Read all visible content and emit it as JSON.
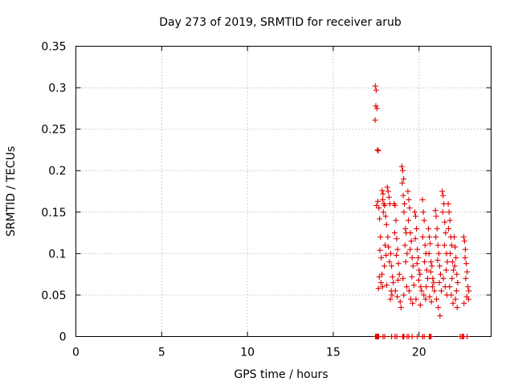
{
  "chart_data": {
    "type": "scatter",
    "title": "Day 273 of 2019, SRMTID for receiver arub",
    "xlabel": "GPS time / hours",
    "ylabel": "SRMTID / TECUs",
    "xlim": [
      0,
      24.2
    ],
    "ylim": [
      0,
      0.35
    ],
    "xticks": [
      0,
      5,
      10,
      15,
      20
    ],
    "xtick_labels": [
      "0",
      "5",
      "10",
      "15",
      "20"
    ],
    "yticks": [
      0,
      0.05,
      0.1,
      0.15,
      0.2,
      0.25,
      0.3,
      0.35
    ],
    "ytick_labels": [
      "0",
      "0.05",
      "0.1",
      "0.15",
      "0.2",
      "0.25",
      "0.3",
      "0.35"
    ],
    "grid": true,
    "marker": "+",
    "series": [
      {
        "name": "SRMTID",
        "color": "#e00000",
        "x": [
          17.45,
          17.5,
          17.48,
          17.55,
          17.44,
          17.58,
          17.62,
          17.6,
          17.52,
          17.66,
          17.7,
          17.75,
          17.72,
          17.8,
          17.68,
          17.63,
          17.85,
          17.9,
          17.88,
          17.95,
          18.0,
          17.92,
          18.05,
          18.1,
          18.02,
          18.08,
          17.98,
          17.84,
          17.78,
          17.87,
          18.15,
          18.2,
          18.25,
          18.3,
          18.18,
          18.22,
          18.35,
          18.28,
          18.4,
          18.45,
          18.5,
          18.38,
          18.42,
          18.33,
          18.12,
          18.55,
          18.6,
          18.65,
          18.58,
          18.7,
          18.75,
          18.68,
          18.8,
          18.85,
          18.78,
          18.62,
          18.73,
          18.9,
          18.95,
          19.0,
          19.05,
          19.1,
          19.02,
          19.08,
          19.15,
          19.12,
          19.2,
          19.25,
          19.18,
          19.3,
          19.22,
          19.06,
          19.28,
          19.11,
          19.35,
          19.4,
          19.45,
          19.38,
          19.5,
          19.55,
          19.48,
          19.6,
          19.65,
          19.58,
          19.7,
          19.42,
          19.52,
          19.62,
          19.75,
          19.8,
          19.85,
          19.78,
          19.9,
          19.95,
          19.88,
          20.0,
          20.05,
          19.98,
          20.1,
          20.15,
          19.82,
          20.08,
          20.2,
          20.25,
          20.3,
          20.22,
          20.35,
          20.4,
          20.32,
          20.45,
          20.5,
          20.42,
          20.28,
          20.38,
          20.55,
          20.6,
          20.65,
          20.58,
          20.7,
          20.75,
          20.68,
          20.8,
          20.85,
          20.78,
          20.9,
          20.62,
          20.72,
          20.95,
          21.0,
          21.05,
          20.98,
          21.1,
          21.15,
          21.08,
          21.2,
          21.25,
          21.18,
          21.3,
          21.02,
          21.12,
          21.22,
          21.35,
          21.4,
          21.45,
          21.38,
          21.5,
          21.55,
          21.48,
          21.6,
          21.65,
          21.58,
          21.42,
          21.52,
          21.62,
          21.7,
          21.75,
          21.8,
          21.72,
          21.85,
          21.9,
          21.82,
          21.95,
          22.0,
          21.92,
          21.78,
          21.88,
          21.98,
          22.05,
          22.1,
          22.15,
          22.08,
          22.2,
          22.25,
          22.18,
          22.12,
          22.22,
          22.6,
          22.65,
          22.7,
          22.68,
          22.75,
          22.8,
          22.72,
          22.85,
          22.9,
          22.78,
          22.88,
          22.62,
          17.46,
          17.6,
          17.9,
          18.0,
          18.4,
          18.6,
          18.7,
          19.3,
          19.4,
          19.6,
          19.9,
          20.2,
          20.3,
          20.6,
          20.65,
          20.7,
          22.4,
          22.5,
          22.55,
          22.6,
          22.8,
          17.5,
          17.55,
          17.62,
          17.65,
          19.08,
          19.12,
          19.05
        ],
        "y": [
          0.302,
          0.297,
          0.278,
          0.275,
          0.261,
          0.225,
          0.224,
          0.163,
          0.158,
          0.155,
          0.142,
          0.12,
          0.104,
          0.095,
          0.072,
          0.058,
          0.176,
          0.172,
          0.165,
          0.16,
          0.158,
          0.15,
          0.145,
          0.135,
          0.11,
          0.098,
          0.085,
          0.075,
          0.065,
          0.06,
          0.18,
          0.175,
          0.168,
          0.16,
          0.12,
          0.108,
          0.1,
          0.09,
          0.085,
          0.072,
          0.065,
          0.055,
          0.05,
          0.045,
          0.062,
          0.16,
          0.158,
          0.14,
          0.125,
          0.118,
          0.105,
          0.098,
          0.088,
          0.075,
          0.068,
          0.055,
          0.048,
          0.042,
          0.035,
          0.205,
          0.2,
          0.19,
          0.185,
          0.17,
          0.16,
          0.15,
          0.13,
          0.125,
          0.11,
          0.1,
          0.09,
          0.07,
          0.06,
          0.05,
          0.175,
          0.165,
          0.155,
          0.14,
          0.125,
          0.115,
          0.105,
          0.095,
          0.085,
          0.072,
          0.062,
          0.055,
          0.045,
          0.04,
          0.15,
          0.145,
          0.13,
          0.118,
          0.105,
          0.095,
          0.088,
          0.08,
          0.075,
          0.068,
          0.06,
          0.055,
          0.045,
          0.038,
          0.165,
          0.15,
          0.14,
          0.12,
          0.11,
          0.1,
          0.09,
          0.08,
          0.07,
          0.06,
          0.05,
          0.045,
          0.13,
          0.12,
          0.112,
          0.1,
          0.09,
          0.085,
          0.078,
          0.07,
          0.065,
          0.06,
          0.055,
          0.048,
          0.042,
          0.152,
          0.145,
          0.13,
          0.12,
          0.11,
          0.1,
          0.092,
          0.085,
          0.075,
          0.065,
          0.055,
          0.045,
          0.035,
          0.025,
          0.175,
          0.17,
          0.16,
          0.15,
          0.138,
          0.125,
          0.11,
          0.1,
          0.09,
          0.08,
          0.07,
          0.06,
          0.05,
          0.16,
          0.15,
          0.14,
          0.13,
          0.12,
          0.11,
          0.1,
          0.09,
          0.08,
          0.07,
          0.06,
          0.05,
          0.04,
          0.12,
          0.108,
          0.095,
          0.085,
          0.075,
          0.065,
          0.055,
          0.045,
          0.035,
          0.12,
          0.115,
          0.105,
          0.095,
          0.088,
          0.078,
          0.07,
          0.06,
          0.055,
          0.048,
          0.045,
          0.04,
          0.0,
          0.0,
          0.0,
          0.0,
          0.0,
          0.0,
          0.0,
          0.0,
          0.0,
          0.0,
          0.0,
          0.0,
          0.0,
          0.0,
          0.0,
          0.0,
          0.0,
          0.0,
          0.0,
          0.0,
          0.0,
          0.0,
          0.0,
          0.0,
          0.0,
          0.0,
          0.0,
          0.0
        ]
      }
    ]
  }
}
